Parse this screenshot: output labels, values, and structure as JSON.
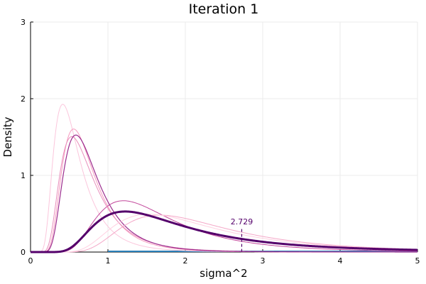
{
  "chart_data": {
    "type": "line",
    "title": "Iteration 1",
    "xlabel": "sigma^2",
    "ylabel": "Density",
    "xlim": [
      0,
      5
    ],
    "ylim": [
      0,
      3
    ],
    "xticks": [
      0,
      1,
      2,
      3,
      4,
      5
    ],
    "yticks": [
      0,
      1,
      2,
      3
    ],
    "grid": true,
    "legend": "none",
    "series": [
      {
        "shape": 5.0,
        "scale": 2.5,
        "color": "#fbc6dc",
        "width": 1.0
      },
      {
        "shape": 6.0,
        "scale": 3.9,
        "color": "#f69bbf",
        "width": 1.0
      },
      {
        "shape": 5.0,
        "scale": 7.2,
        "color": "#c2479b",
        "width": 1.0
      },
      {
        "shape": 5.0,
        "scale": 3.2,
        "color": "#e98fbc",
        "width": 1.0
      },
      {
        "shape": 6.0,
        "scale": 4.1,
        "color": "#9b2c8e",
        "width": 1.2
      },
      {
        "shape": 5.0,
        "scale": 10.0,
        "color": "#f4a8c8",
        "width": 1.0
      },
      {
        "shape": 4.5,
        "scale": 8.4,
        "color": "#ffd0e1",
        "width": 1.0
      },
      {
        "shape": 3.5,
        "scale": 5.5,
        "color": "#54006b",
        "width": 3.0
      }
    ],
    "annotation": {
      "x": 2.729,
      "label": "2.729",
      "color": "#54006b"
    },
    "baseline_color": "#2a7fb8"
  }
}
